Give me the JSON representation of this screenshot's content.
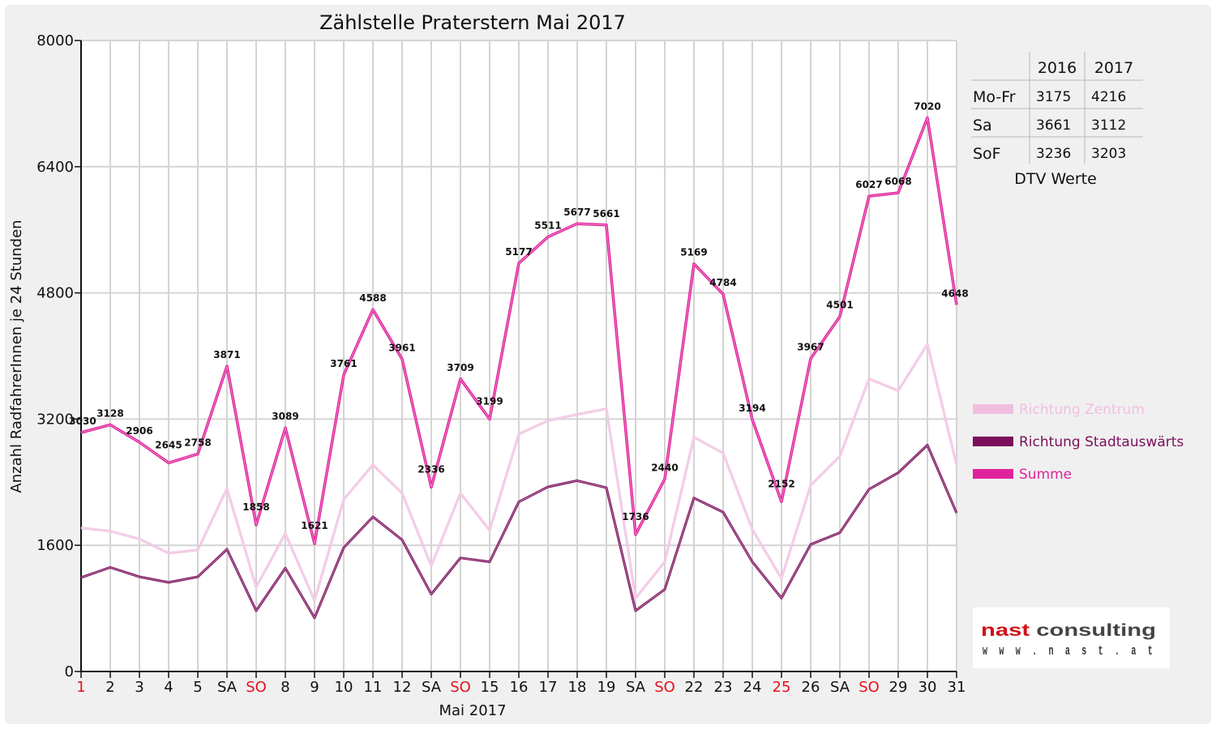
{
  "chart_data": {
    "type": "line",
    "title": "Zählstelle Praterstern Mai 2017",
    "ylabel": "Anzahl RadfahrerInnen je 24 Stunden",
    "xlabel": "Mai 2017",
    "ylim": [
      0,
      8000
    ],
    "yticks": [
      "0",
      "1600",
      "3200",
      "4800",
      "6400",
      "8000"
    ],
    "categories": [
      "1",
      "2",
      "3",
      "4",
      "5",
      "SA",
      "SO",
      "8",
      "9",
      "10",
      "11",
      "12",
      "SA",
      "SO",
      "15",
      "16",
      "17",
      "18",
      "19",
      "SA",
      "SO",
      "22",
      "23",
      "24",
      "25",
      "26",
      "SA",
      "SO",
      "29",
      "30",
      "31"
    ],
    "red_categories": [
      0,
      6,
      13,
      20,
      24,
      27
    ],
    "grid": true,
    "series": [
      {
        "name": "Richtung Zentrum",
        "color": "#f0bfe0",
        "values": [
          1820,
          1780,
          1680,
          1500,
          1540,
          2320,
          1070,
          1750,
          900,
          2180,
          2620,
          2260,
          1340,
          2260,
          1790,
          3010,
          3180,
          3260,
          3330,
          930,
          1390,
          2970,
          2770,
          1800,
          1180,
          2360,
          2730,
          3710,
          3560,
          4150,
          2620
        ]
      },
      {
        "name": "Richtung Stadtauswärts",
        "color": "#7b0f5c",
        "values": [
          1190,
          1320,
          1200,
          1130,
          1200,
          1550,
          770,
          1310,
          680,
          1570,
          1960,
          1670,
          980,
          1440,
          1390,
          2150,
          2340,
          2420,
          2330,
          770,
          1040,
          2200,
          2020,
          1390,
          930,
          1610,
          1760,
          2310,
          2520,
          2870,
          2010
        ]
      },
      {
        "name": "Summe",
        "color": "#e0239b",
        "values": [
          3030,
          3128,
          2906,
          2645,
          2758,
          3871,
          1858,
          3089,
          1621,
          3761,
          4588,
          3961,
          2336,
          3709,
          3199,
          5177,
          5511,
          5677,
          5661,
          1736,
          2440,
          5169,
          4784,
          3194,
          2152,
          3967,
          4501,
          6027,
          6068,
          7020,
          4648
        ]
      }
    ],
    "data_labels": [
      "3030",
      "3128",
      "2906",
      "2645",
      "2758",
      "3871",
      "1858",
      "3089",
      "1621",
      "3761",
      "4588",
      "3961",
      "2336",
      "3709",
      "3199",
      "5177",
      "5511",
      "5677",
      "5661",
      "1736",
      "2440",
      "5169",
      "4784",
      "3194",
      "2152",
      "3967",
      "4501",
      "6027",
      "6068",
      "7020",
      "4648"
    ],
    "legend_position": "right"
  },
  "dtv_table": {
    "caption": "DTV Werte",
    "headers": [
      "",
      "2016",
      "2017"
    ],
    "rows": [
      [
        "Mo-Fr",
        "3175",
        "4216"
      ],
      [
        "Sa",
        "3661",
        "3112"
      ],
      [
        "SoF",
        "3236",
        "3203"
      ]
    ]
  },
  "logo": {
    "name_red": "nast",
    "name_gray": "consulting",
    "url": "w w w . n a s t . a t"
  }
}
